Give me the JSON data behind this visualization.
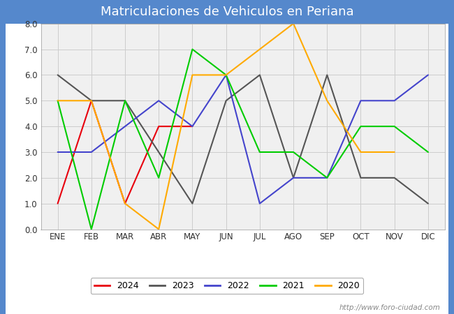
{
  "title": "Matriculaciones de Vehiculos en Periana",
  "months": [
    "ENE",
    "FEB",
    "MAR",
    "ABR",
    "MAY",
    "JUN",
    "JUL",
    "AGO",
    "SEP",
    "OCT",
    "NOV",
    "DIC"
  ],
  "series": {
    "2024": {
      "color": "#e8000d",
      "data": [
        1,
        5,
        1,
        4,
        4,
        null,
        null,
        null,
        null,
        null,
        null,
        null
      ]
    },
    "2023": {
      "color": "#555555",
      "data": [
        6,
        5,
        5,
        3,
        1,
        5,
        6,
        2,
        6,
        2,
        2,
        1
      ]
    },
    "2022": {
      "color": "#4444cc",
      "data": [
        3,
        3,
        4,
        5,
        4,
        6,
        1,
        2,
        2,
        5,
        5,
        6
      ]
    },
    "2021": {
      "color": "#00cc00",
      "data": [
        5,
        0,
        5,
        2,
        7,
        6,
        3,
        3,
        2,
        4,
        4,
        3
      ]
    },
    "2020": {
      "color": "#ffaa00",
      "data": [
        5,
        5,
        1,
        0,
        6,
        6,
        null,
        8,
        5,
        3,
        3,
        null
      ]
    }
  },
  "ylim": [
    0.0,
    8.0
  ],
  "yticks": [
    0.0,
    1.0,
    2.0,
    3.0,
    4.0,
    5.0,
    6.0,
    7.0,
    8.0
  ],
  "title_fontsize": 13,
  "plot_bg": "#f0f0f0",
  "fig_bg": "#ffffff",
  "header_color": "#5588cc",
  "watermark": "http://www.foro-ciudad.com"
}
